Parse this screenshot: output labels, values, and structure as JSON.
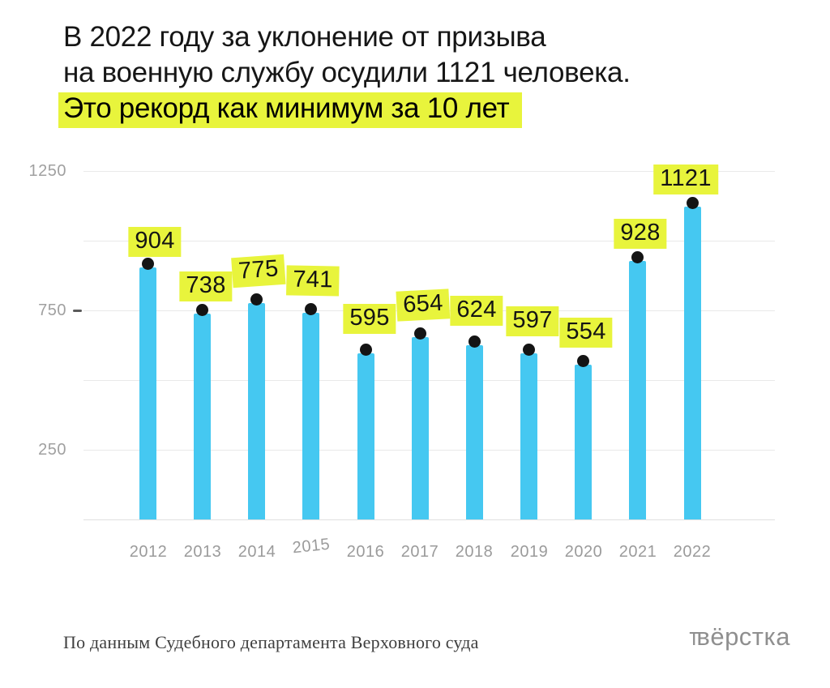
{
  "title": {
    "line1": "В 2022 году за уклонение от призыва",
    "line2": "на военную службу осудили 1121 человека.",
    "line3_highlighted": "Это рекорд как минимум за 10 лет"
  },
  "chart_data": {
    "type": "bar",
    "categories": [
      "2012",
      "2013",
      "2014",
      "2015",
      "2016",
      "2017",
      "2018",
      "2019",
      "2020",
      "2021",
      "2022"
    ],
    "values": [
      904,
      738,
      775,
      741,
      595,
      654,
      624,
      597,
      554,
      928,
      1121
    ],
    "title": "",
    "xlabel": "",
    "ylabel": "",
    "ylim": [
      0,
      1250
    ],
    "gridline_values": [
      0,
      250,
      500,
      750,
      1000,
      1250
    ],
    "ytick_labels": [
      1250,
      750,
      250
    ],
    "ytick_dash_value": 750,
    "grid": "horizontal",
    "legend": "none",
    "point_markers": "black dot on top of each bar",
    "value_labels": "yellow highlighted numbers above each bar",
    "label_adjust_dx": [
      8,
      4,
      2,
      2,
      5,
      4,
      3,
      4,
      3,
      3,
      -8
    ],
    "label_adjust_dy": [
      6,
      4,
      -2,
      -2,
      -5,
      -2,
      -5,
      -2,
      -2,
      4,
      4
    ],
    "label_adjust_rot": [
      0,
      0,
      -4,
      1,
      0,
      -3,
      0,
      0,
      0,
      0,
      0
    ],
    "xtick_adjust_dy": [
      0,
      0,
      0,
      -7,
      0,
      0,
      0,
      0,
      0,
      0,
      0
    ],
    "xtick_adjust_rot": [
      0,
      0,
      0,
      -6,
      0,
      0,
      0,
      0,
      0,
      0,
      0
    ]
  },
  "footer": {
    "source": "По данным Судебного департамента Верховного суда",
    "logo_t": "т",
    "logo_rest": "вёрстка"
  },
  "colors": {
    "background": "#ffffff",
    "bar": "#45c8f1",
    "highlight": "#e8f43c",
    "dot": "#141414",
    "grid": "#e9e9e9",
    "baseline": "#e0e0e0",
    "ytick_dash": "#5a5a5a",
    "title_text": "#161616",
    "axis_text": "#a0a0a0",
    "source_text": "#3f3f3f",
    "logo_text": "#8f8f8f"
  }
}
